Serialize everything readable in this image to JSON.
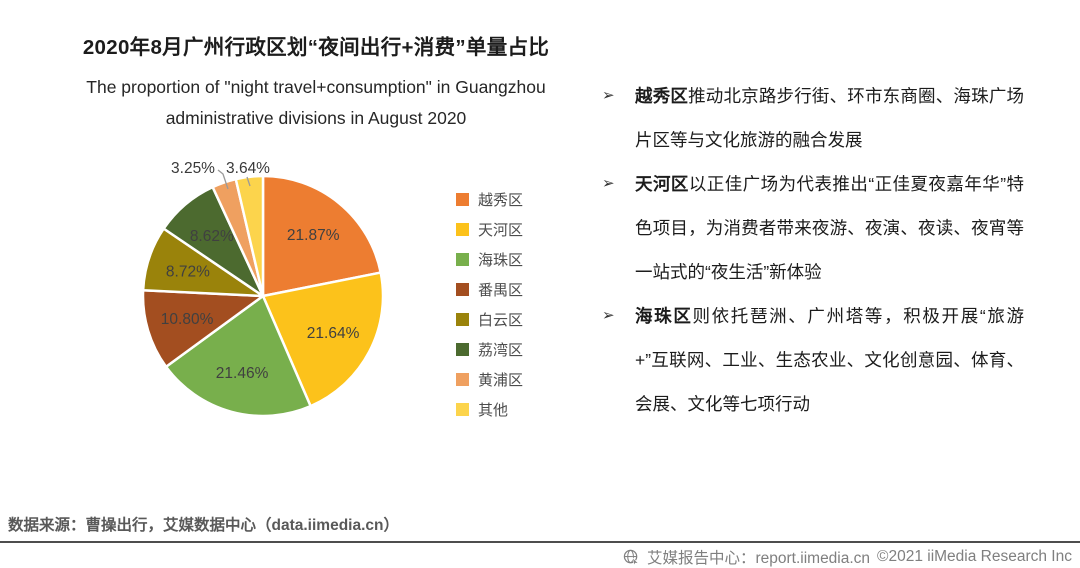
{
  "header": {
    "title": "2020年8月广州行政区划“夜间出行+消费”单量占比",
    "subtitle_line1": "The proportion of \"night travel+consumption\" in Guangzhou",
    "subtitle_line2": "administrative divisions in August 2020"
  },
  "chart_data": {
    "type": "pie",
    "title": "2020年8月广州行政区划“夜间出行+消费”单量占比",
    "categories": [
      "越秀区",
      "天河区",
      "海珠区",
      "番禺区",
      "白云区",
      "荔湾区",
      "黄浦区",
      "其他"
    ],
    "values": [
      21.87,
      21.64,
      21.46,
      10.8,
      8.72,
      8.62,
      3.25,
      3.64
    ],
    "unit": "%",
    "colors": [
      "#ED7D31",
      "#FCC21B",
      "#78AF4C",
      "#A34E20",
      "#9A830B",
      "#4C6A2F",
      "#EFA060",
      "#FCD44C"
    ],
    "start_angle": 0,
    "direction": "clockwise",
    "legend_position": "right",
    "slice_label_color": "#404040",
    "outside_label_threshold": 5
  },
  "insights": {
    "bullet_glyph": "➢",
    "items": [
      {
        "lead": "越秀区",
        "text": "推动北京路步行街、环市东商圈、海珠广场片区等与文化旅游的融合发展"
      },
      {
        "lead": "天河区",
        "text": "以正佳广场为代表推出“正佳夏夜嘉年华”特色项目，为消费者带来夜游、夜演、夜读、夜宵等一站式的“夜生活”新体验"
      },
      {
        "lead": "海珠区",
        "text": "则依托琶洲、广州塔等，积极开展“旅游+”互联网、工业、生态农业、文化创意园、体育、会展、文化等七项行动"
      }
    ]
  },
  "source": {
    "text": "数据来源：曹操出行，艾媒数据中心（data.iimedia.cn）"
  },
  "footer": {
    "icon": "globe-icon",
    "site_label": "艾媒报告中心：report.iimedia.cn",
    "copyright": "©2021  iiMedia Research  Inc"
  }
}
